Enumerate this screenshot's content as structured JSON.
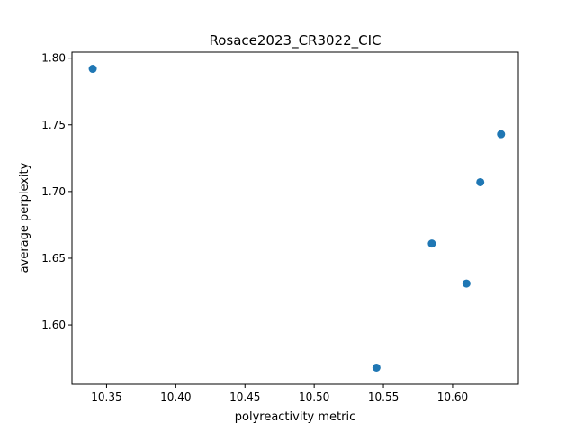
{
  "chart_data": {
    "type": "scatter",
    "title": "Rosace2023_CR3022_CIC",
    "xlabel": "polyreactivity metric",
    "ylabel": "average perplexity",
    "xlim": [
      10.325,
      10.6475
    ],
    "ylim": [
      1.5555,
      1.8045
    ],
    "xticks": [
      10.35,
      10.4,
      10.45,
      10.5,
      10.55,
      10.6
    ],
    "xtick_labels": [
      "10.35",
      "10.40",
      "10.45",
      "10.50",
      "10.55",
      "10.60"
    ],
    "yticks": [
      1.6,
      1.65,
      1.7,
      1.75,
      1.8
    ],
    "ytick_labels": [
      "1.60",
      "1.65",
      "1.70",
      "1.75",
      "1.80"
    ],
    "grid": false,
    "marker_color": "#1f77b4",
    "points": [
      {
        "x": 10.34,
        "y": 1.792
      },
      {
        "x": 10.545,
        "y": 1.568
      },
      {
        "x": 10.585,
        "y": 1.661
      },
      {
        "x": 10.61,
        "y": 1.631
      },
      {
        "x": 10.62,
        "y": 1.707
      },
      {
        "x": 10.635,
        "y": 1.743
      }
    ]
  }
}
